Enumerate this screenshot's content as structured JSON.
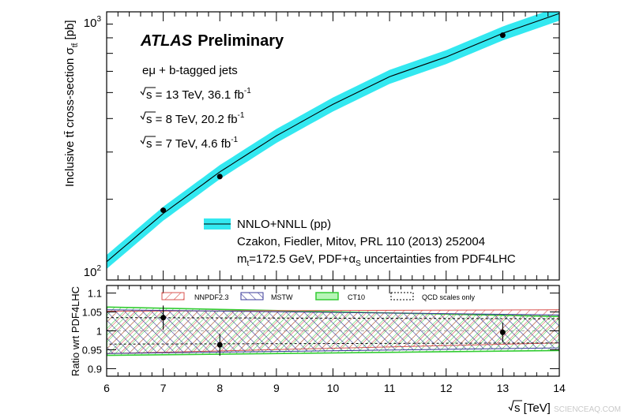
{
  "chart_data": [
    {
      "type": "line",
      "panel": "main",
      "experiment": "ATLAS",
      "status": "Preliminary",
      "channel": "eμ + b-tagged jets",
      "datasets": [
        {
          "energy": "13 TeV",
          "lumi": "36.1 fb",
          "lumi_exp": "-1"
        },
        {
          "energy": "8 TeV",
          "lumi": "20.2 fb",
          "lumi_exp": "-1"
        },
        {
          "energy": "7 TeV",
          "lumi": "4.6 fb",
          "lumi_exp": "-1"
        }
      ],
      "ylabel_prefix": "Inclusive ",
      "ylabel_process": "tt̄",
      "ylabel_mid": " cross-section σ",
      "ylabel_sub": "tt̄",
      "ylabel_unit": " [pb]",
      "yscale": "log",
      "ylim": [
        100,
        1000
      ],
      "ytick_labels": [
        {
          "base": "10",
          "exp": "2",
          "value": 100
        },
        {
          "base": "10",
          "exp": "3",
          "value": 1000
        }
      ],
      "xlim": [
        6,
        14
      ],
      "theory": {
        "legend_label": "NNLO+NNLL (pp)",
        "reference": "Czakon, Fiedler, Mitov, PRL 110 (2013) 252004",
        "mass_prefix": "m",
        "mass_sub": "t",
        "mass_text": "=172.5 GeV, PDF+α",
        "alpha_sub": "S",
        "uncert_text": " uncertainties from PDF4LHC",
        "band_color": "#33e8f0",
        "line_color": "#000000",
        "x": [
          6,
          7,
          8,
          9,
          10,
          11,
          12,
          13,
          14
        ],
        "y": [
          117,
          177,
          253,
          345,
          452,
          573,
          679,
          832,
          986
        ],
        "rel_uncert": 0.06
      },
      "points": [
        {
          "x": 7,
          "y": 182
        },
        {
          "x": 8,
          "y": 243
        },
        {
          "x": 13,
          "y": 818
        }
      ]
    },
    {
      "type": "area",
      "panel": "ratio",
      "ylabel": "Ratio wrt PDF4LHC",
      "xlabel_text": "s [TeV]",
      "xlim": [
        6,
        14
      ],
      "ylim": [
        0.88,
        1.12
      ],
      "xticks": [
        6,
        7,
        8,
        9,
        10,
        11,
        12,
        13,
        14
      ],
      "yticks": [
        0.9,
        0.95,
        1,
        1.05,
        1.1
      ],
      "ytick_labels": [
        "0.9",
        "0.95",
        "1",
        "1.05",
        "1.1"
      ],
      "series": [
        {
          "name": "NNPDF2.3",
          "color": "#d9534f",
          "x": [
            6,
            14
          ],
          "lo": [
            0.94,
            0.968
          ],
          "hi": [
            1.052,
            1.056
          ]
        },
        {
          "name": "MSTW",
          "color": "#3a3a99",
          "x": [
            6,
            14
          ],
          "lo": [
            0.94,
            0.955
          ],
          "hi": [
            1.056,
            1.042
          ]
        },
        {
          "name": "CT10",
          "color": "#33cc33",
          "x": [
            6,
            14
          ],
          "lo": [
            0.935,
            0.948
          ],
          "hi": [
            1.063,
            1.038
          ]
        },
        {
          "name": "QCD scales only",
          "color": "#000000",
          "x": [
            6,
            14
          ],
          "lo": [
            0.965,
            0.968
          ],
          "hi": [
            1.035,
            1.032
          ]
        }
      ],
      "points": [
        {
          "x": 7,
          "y": 1.035,
          "err": 0.032
        },
        {
          "x": 8,
          "y": 0.963,
          "err": 0.029
        },
        {
          "x": 13,
          "y": 0.996,
          "err": 0.026
        }
      ]
    }
  ],
  "watermark": "SCIENCEAQ.COM"
}
